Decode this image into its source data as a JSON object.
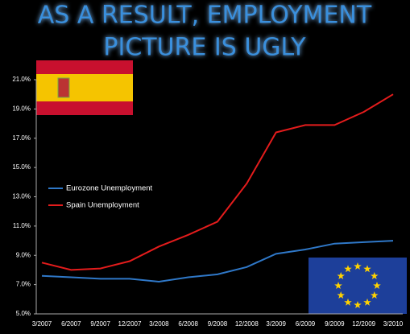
{
  "chart_data": {
    "type": "line",
    "title": [
      "AS A RESULT, EMPLOYMENT",
      "PICTURE IS UGLY"
    ],
    "categories": [
      "3/2007",
      "6/2007",
      "9/2007",
      "12/2007",
      "3/2008",
      "6/2008",
      "9/2008",
      "12/2008",
      "3/2009",
      "6/2009",
      "9/2009",
      "12/2009",
      "3/2010"
    ],
    "series": [
      {
        "name": "Eurozone Unemployment",
        "color": "#2f78c8",
        "values": [
          7.6,
          7.5,
          7.4,
          7.4,
          7.2,
          7.5,
          7.7,
          8.2,
          9.1,
          9.4,
          9.8,
          9.9,
          10.0
        ]
      },
      {
        "name": "Spain Unemployment",
        "color": "#e41c1c",
        "values": [
          8.5,
          8.0,
          8.1,
          8.6,
          9.6,
          10.4,
          11.3,
          13.9,
          17.4,
          17.9,
          17.9,
          18.8,
          20.0
        ]
      }
    ],
    "ylim": [
      5,
      21
    ],
    "yticks": [
      {
        "value": 5,
        "label": "5.0%"
      },
      {
        "value": 7,
        "label": "7.0%"
      },
      {
        "value": 9,
        "label": "9.0%"
      },
      {
        "value": 11,
        "label": "11.0%"
      },
      {
        "value": 13,
        "label": "13.0%"
      },
      {
        "value": 15,
        "label": "15.0%"
      },
      {
        "value": 17,
        "label": "17.0%"
      },
      {
        "value": 19,
        "label": "19.0%"
      },
      {
        "value": 21,
        "label": "21.0%"
      }
    ],
    "grid": false
  }
}
